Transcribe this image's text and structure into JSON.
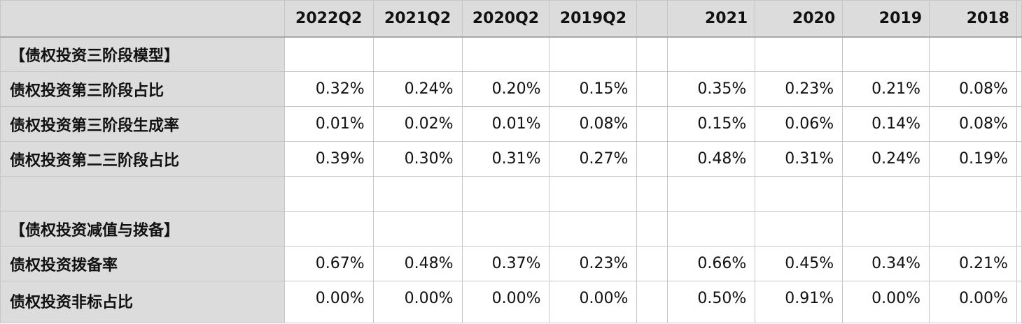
{
  "columns": {
    "quarters": [
      "2022Q2",
      "2021Q2",
      "2020Q2",
      "2019Q2"
    ],
    "years": [
      "2021",
      "2020",
      "2019",
      "2018"
    ]
  },
  "rows": [
    {
      "label": "【债权投资三阶段模型】",
      "quarters": [
        "",
        "",
        "",
        ""
      ],
      "years": [
        "",
        "",
        "",
        ""
      ]
    },
    {
      "label": "债权投资第三阶段占比",
      "quarters": [
        "0.32%",
        "0.24%",
        "0.20%",
        "0.15%"
      ],
      "years": [
        "0.35%",
        "0.23%",
        "0.21%",
        "0.08%"
      ]
    },
    {
      "label": "债权投资第三阶段生成率",
      "quarters": [
        "0.01%",
        "0.02%",
        "0.01%",
        "0.08%"
      ],
      "years": [
        "0.15%",
        "0.06%",
        "0.14%",
        "0.08%"
      ]
    },
    {
      "label": "债权投资第二三阶段占比",
      "quarters": [
        "0.39%",
        "0.30%",
        "0.31%",
        "0.27%"
      ],
      "years": [
        "0.48%",
        "0.31%",
        "0.24%",
        "0.19%"
      ]
    },
    {
      "label": "",
      "quarters": [
        "",
        "",
        "",
        ""
      ],
      "years": [
        "",
        "",
        "",
        ""
      ]
    },
    {
      "label": "【债权投资减值与拨备】",
      "quarters": [
        "",
        "",
        "",
        ""
      ],
      "years": [
        "",
        "",
        "",
        ""
      ]
    },
    {
      "label": "债权投资拨备率",
      "quarters": [
        "0.67%",
        "0.48%",
        "0.37%",
        "0.23%"
      ],
      "years": [
        "0.66%",
        "0.45%",
        "0.34%",
        "0.21%"
      ]
    },
    {
      "label": "债权投资非标占比",
      "quarters": [
        "0.00%",
        "0.00%",
        "0.00%",
        "0.00%"
      ],
      "years": [
        "0.50%",
        "0.91%",
        "0.00%",
        "0.00%"
      ]
    }
  ]
}
